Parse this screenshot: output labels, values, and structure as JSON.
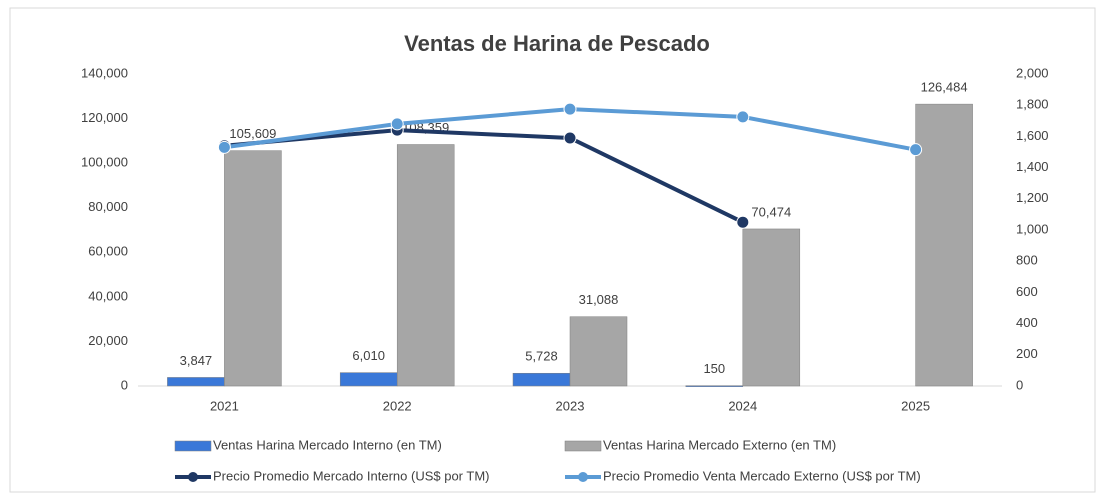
{
  "chart_data": {
    "type": "bar",
    "title": "Ventas de Harina de Pescado",
    "categories": [
      "2021",
      "2022",
      "2023",
      "2024",
      "2025"
    ],
    "series": [
      {
        "name": "Ventas Harina Mercado Interno (en TM)",
        "type": "bar",
        "color": "#3a78d8",
        "values": [
          3847,
          6010,
          5728,
          150,
          null
        ],
        "value_labels": [
          "3,847",
          "6,010",
          "5,728",
          "150",
          null
        ]
      },
      {
        "name": "Ventas Harina Mercado Externo (en TM)",
        "type": "bar",
        "color": "#a6a6a6",
        "values": [
          105609,
          108359,
          31088,
          70474,
          126484
        ],
        "value_labels": [
          "105,609",
          "108,359",
          "31,088",
          "70,474",
          "126,484"
        ]
      },
      {
        "name": "Precio Promedio Mercado Interno (US$ por TM)",
        "type": "line",
        "axis": "y2",
        "color": "#1f3864",
        "values": [
          1540,
          1640,
          1590,
          1050,
          null
        ]
      },
      {
        "name": "Precio Promedio Venta Mercado Externo (US$ por TM)",
        "type": "line",
        "axis": "y2",
        "color": "#5b9bd5",
        "values": [
          1530,
          1680,
          1775,
          1725,
          1515
        ]
      }
    ],
    "ylim": [
      0,
      140000
    ],
    "yticks": [
      0,
      {
        "value": 20000,
        "label": "20,000"
      },
      {
        "value": 40000,
        "label": "40,000"
      },
      {
        "value": 60000,
        "label": "60,000"
      },
      {
        "value": 80000,
        "label": "80,000"
      },
      {
        "value": 100000,
        "label": "100,000"
      },
      {
        "value": 120000,
        "label": "120,000"
      },
      {
        "value": 140000,
        "label": "140,000"
      }
    ],
    "y2lim": [
      0,
      2000
    ],
    "y2ticks": [
      0,
      200,
      400,
      600,
      800,
      {
        "value": 1000,
        "label": "1,000"
      },
      {
        "value": 1200,
        "label": "1,200"
      },
      {
        "value": 1400,
        "label": "1,400"
      },
      {
        "value": 1600,
        "label": "1,600"
      },
      {
        "value": 1800,
        "label": "1,800"
      },
      {
        "value": 2000,
        "label": "2,000"
      }
    ]
  }
}
